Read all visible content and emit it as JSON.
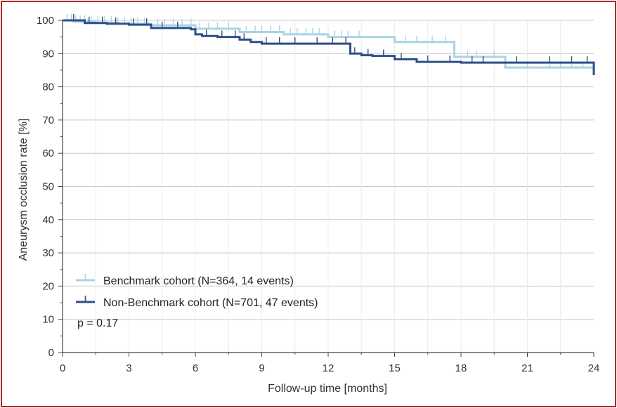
{
  "chart_data": {
    "type": "line",
    "subtype": "kaplan-meier",
    "xlabel": "Follow-up time [months]",
    "ylabel": "Aneurysm occlusion rate [%]",
    "xlim": [
      0,
      24
    ],
    "ylim": [
      0,
      100
    ],
    "x_ticks": [
      0,
      3,
      6,
      9,
      12,
      15,
      18,
      21,
      24
    ],
    "y_ticks": [
      0,
      10,
      20,
      30,
      40,
      50,
      60,
      70,
      80,
      90,
      100
    ],
    "grid": true,
    "legend_position": "bottom-left",
    "annotation": "p = 0.17",
    "series": [
      {
        "name": "Benchmark cohort (N=364, 14 events)",
        "color": "#a8d4e6",
        "steps": [
          [
            0,
            100
          ],
          [
            0.5,
            99.6
          ],
          [
            1.5,
            99.3
          ],
          [
            2.5,
            99.0
          ],
          [
            4,
            98.5
          ],
          [
            6,
            97.5
          ],
          [
            8,
            96.5
          ],
          [
            10,
            95.8
          ],
          [
            12,
            95.0
          ],
          [
            15,
            93.5
          ],
          [
            17.7,
            89.0
          ],
          [
            20,
            85.8
          ],
          [
            24,
            85.8
          ]
        ],
        "censor_times": [
          0.2,
          0.4,
          0.6,
          0.8,
          1.0,
          1.3,
          1.6,
          1.9,
          2.2,
          2.5,
          2.8,
          3.1,
          3.4,
          3.7,
          4.3,
          4.6,
          5.0,
          5.4,
          5.8,
          6.2,
          6.6,
          7.0,
          7.5,
          8.3,
          8.7,
          9.0,
          9.4,
          9.8,
          10.3,
          10.6,
          11.0,
          11.3,
          11.6,
          12.3,
          12.6,
          12.9,
          13.4,
          15.5,
          16.0,
          16.7,
          17.3,
          18.3,
          18.7,
          19.5,
          21.0,
          22.0,
          22.5,
          23.0,
          23.5
        ]
      },
      {
        "name": "Non-Benchmark cohort (N=701, 47 events)",
        "color": "#2e4f86",
        "steps": [
          [
            0,
            100
          ],
          [
            1,
            99.2
          ],
          [
            2,
            99.0
          ],
          [
            3,
            98.7
          ],
          [
            4,
            97.7
          ],
          [
            5.8,
            97.3
          ],
          [
            6,
            95.8
          ],
          [
            6.3,
            95.3
          ],
          [
            7,
            95.0
          ],
          [
            8,
            94.2
          ],
          [
            8.5,
            93.5
          ],
          [
            9,
            93.0
          ],
          [
            11,
            93.0
          ],
          [
            13,
            90.0
          ],
          [
            13.5,
            89.5
          ],
          [
            14,
            89.3
          ],
          [
            15,
            88.3
          ],
          [
            16,
            87.5
          ],
          [
            18,
            87.3
          ],
          [
            24,
            87.3
          ],
          [
            24,
            83.5
          ]
        ],
        "censor_times": [
          0.5,
          1.2,
          1.8,
          2.4,
          3.2,
          3.8,
          4.5,
          5.2,
          6.5,
          7.2,
          7.8,
          8.2,
          9.2,
          9.8,
          10.5,
          11.5,
          12.2,
          12.8,
          13.2,
          13.8,
          14.5,
          15.3,
          16.5,
          17.5,
          18.5,
          19.0,
          20.5,
          22.0,
          23.0,
          23.7
        ]
      }
    ]
  }
}
